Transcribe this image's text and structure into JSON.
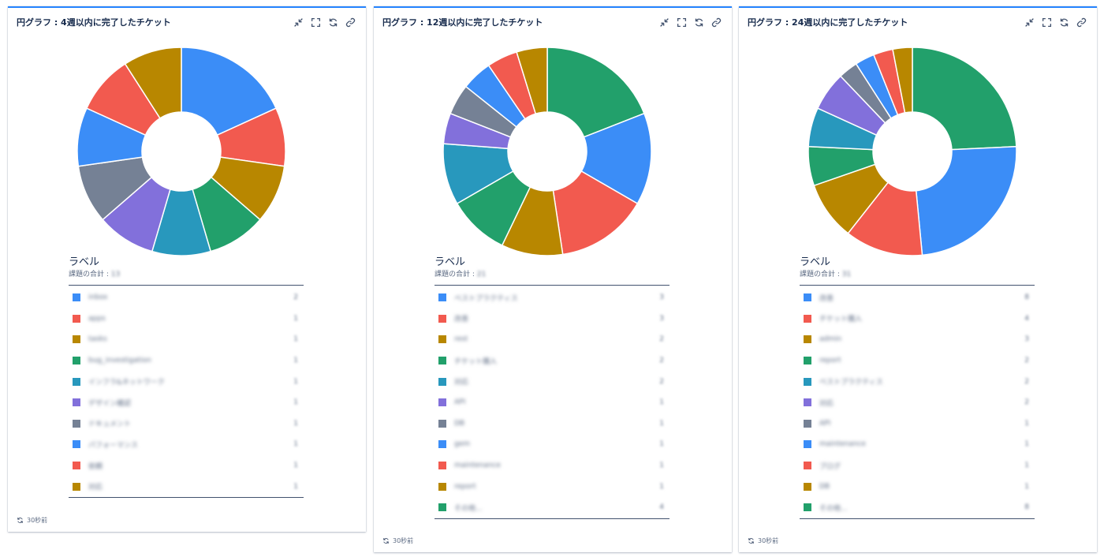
{
  "gadgets": [
    {
      "title": "円グラフ : 4週以内に完了したチケット",
      "legend_title": "ラベル",
      "legend_sub_label": "課題の合計 : ",
      "legend_sub_value": "13",
      "refresh": "30秒前",
      "rows": [
        {
          "name": "inbox",
          "value": "2"
        },
        {
          "name": "apps",
          "value": "1"
        },
        {
          "name": "tasks",
          "value": "1"
        },
        {
          "name": "bug_investigation",
          "value": "1"
        },
        {
          "name": "インフラ&ネットワーク",
          "value": "1"
        },
        {
          "name": "デザイン確認",
          "value": "1"
        },
        {
          "name": "ドキュメント",
          "value": "1"
        },
        {
          "name": "パフォーマンス",
          "value": "1"
        },
        {
          "name": "依頼",
          "value": "1"
        },
        {
          "name": "対応",
          "value": "1"
        }
      ]
    },
    {
      "title": "円グラフ : 12週以内に完了したチケット",
      "legend_title": "ラベル",
      "legend_sub_label": "課題の合計 : ",
      "legend_sub_value": "21",
      "refresh": "30秒前",
      "rows": [
        {
          "name": "ベストプラクティス",
          "value": "3"
        },
        {
          "name": "改善",
          "value": "3"
        },
        {
          "name": "rest",
          "value": "2"
        },
        {
          "name": "チケット購入",
          "value": "2"
        },
        {
          "name": "対応",
          "value": "2"
        },
        {
          "name": "API",
          "value": "1"
        },
        {
          "name": "DB",
          "value": "1"
        },
        {
          "name": "gem",
          "value": "1"
        },
        {
          "name": "maintenance",
          "value": "1"
        },
        {
          "name": "report",
          "value": "1"
        },
        {
          "name": "その他...",
          "value": "4"
        }
      ]
    },
    {
      "title": "円グラフ : 24週以内に完了したチケット",
      "legend_title": "ラベル",
      "legend_sub_label": "課題の合計 : ",
      "legend_sub_value": "31",
      "refresh": "30秒前",
      "rows": [
        {
          "name": "改善",
          "value": "8"
        },
        {
          "name": "チケット購入",
          "value": "4"
        },
        {
          "name": "admin",
          "value": "3"
        },
        {
          "name": "report",
          "value": "2"
        },
        {
          "name": "ベストプラクティス",
          "value": "2"
        },
        {
          "name": "対応",
          "value": "2"
        },
        {
          "name": "API",
          "value": "1"
        },
        {
          "name": "maintenance",
          "value": "1"
        },
        {
          "name": "ブログ",
          "value": "1"
        },
        {
          "name": "DB",
          "value": "1"
        },
        {
          "name": "その他...",
          "value": "8"
        }
      ]
    }
  ],
  "chart_data": [
    {
      "type": "pie",
      "labels": [
        "inbox",
        "apps",
        "tasks",
        "bug_investigation",
        "インフラ&ネットワーク",
        "デザイン確認",
        "ドキュメント",
        "パフォーマンス",
        "依頼",
        "対応"
      ],
      "values": [
        2,
        1,
        1,
        1,
        1,
        1,
        1,
        1,
        1,
        1
      ],
      "colors": [
        "#3b8df7",
        "#f25a4f",
        "#b88700",
        "#22a06b",
        "#2898bd",
        "#8270db",
        "#758195",
        "#3b8df7",
        "#f25a4f",
        "#b88700"
      ],
      "start_color_index": 0
    },
    {
      "type": "pie",
      "labels": [
        "ベストプラクティス",
        "改善",
        "rest",
        "チケット購入",
        "対応",
        "API",
        "DB",
        "gem",
        "maintenance",
        "report",
        "その他..."
      ],
      "values": [
        3,
        3,
        2,
        2,
        2,
        1,
        1,
        1,
        1,
        1,
        4
      ],
      "colors": [
        "#3b8df7",
        "#f25a4f",
        "#b88700",
        "#22a06b",
        "#2898bd",
        "#8270db",
        "#758195",
        "#3b8df7",
        "#f25a4f",
        "#b88700",
        "#22a06b"
      ],
      "slice_order": [
        10,
        0,
        1,
        2,
        3,
        4,
        5,
        6,
        7,
        8,
        9
      ]
    },
    {
      "type": "pie",
      "labels": [
        "改善",
        "チケット購入",
        "admin",
        "report",
        "ベストプラクティス",
        "対応",
        "API",
        "maintenance",
        "ブログ",
        "DB",
        "その他..."
      ],
      "values": [
        8,
        4,
        3,
        2,
        2,
        2,
        1,
        1,
        1,
        1,
        8
      ],
      "colors": [
        "#3b8df7",
        "#f25a4f",
        "#b88700",
        "#22a06b",
        "#2898bd",
        "#8270db",
        "#758195",
        "#3b8df7",
        "#f25a4f",
        "#b88700",
        "#22a06b"
      ],
      "slice_order": [
        10,
        0,
        1,
        2,
        3,
        4,
        5,
        6,
        7,
        8,
        9
      ]
    }
  ]
}
